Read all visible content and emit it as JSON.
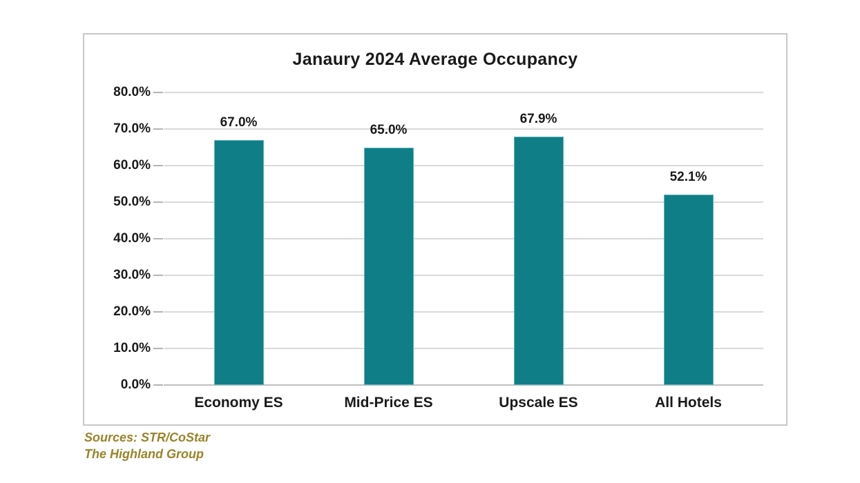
{
  "chart_data": {
    "type": "bar",
    "title": "Janaury 2024 Average Occupancy",
    "categories": [
      "Economy ES",
      "Mid-Price ES",
      "Upscale ES",
      "All Hotels"
    ],
    "values": [
      67.0,
      65.0,
      67.9,
      52.1
    ],
    "data_labels": [
      "67.0%",
      "65.0%",
      "67.9%",
      "52.1%"
    ],
    "xlabel": "",
    "ylabel": "",
    "ylim": [
      0,
      80
    ],
    "y_tick_step": 10,
    "y_tick_labels": [
      "0.0%",
      "10.0%",
      "20.0%",
      "30.0%",
      "40.0%",
      "50.0%",
      "60.0%",
      "70.0%",
      "80.0%"
    ],
    "grid": true,
    "legend": false,
    "bar_color": "#0f7e87",
    "gridline_color": "#d9d9d9",
    "frame_border_color": "#c8c8c8"
  },
  "sources": {
    "line1": "Sources: STR/CoStar",
    "line2": "The Highland Group",
    "color": "#9a832a"
  }
}
